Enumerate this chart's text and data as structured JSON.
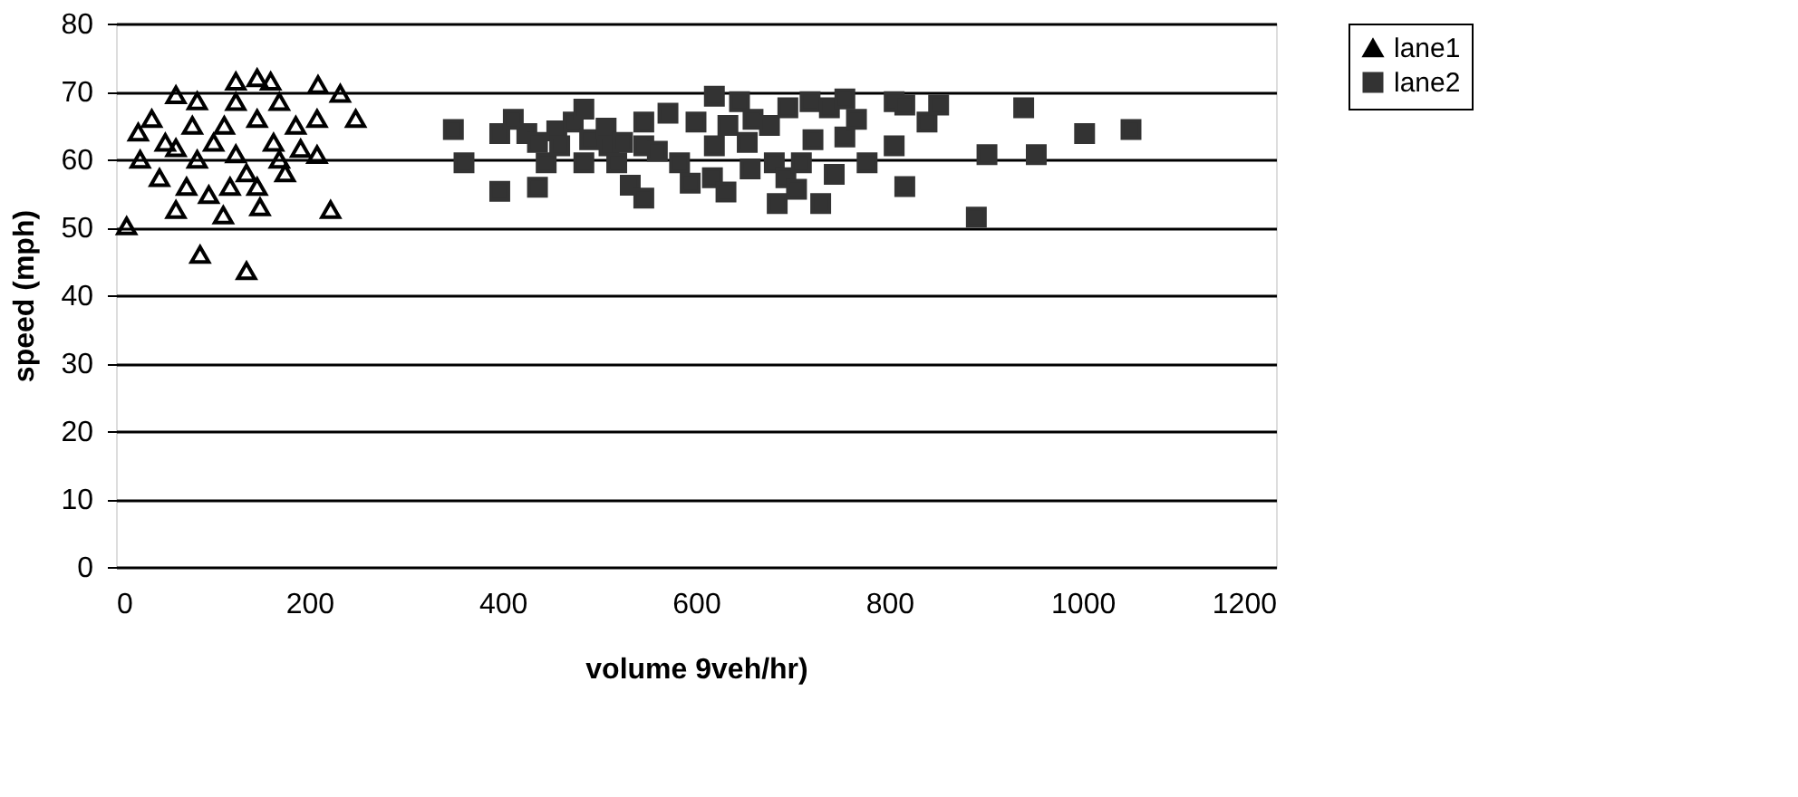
{
  "chart_data": {
    "type": "scatter",
    "xlabel": "volume 9veh/hr)",
    "ylabel": "speed (mph)",
    "xlim": [
      0,
      1200
    ],
    "xticks": [
      0,
      200,
      400,
      600,
      800,
      1000,
      1200
    ],
    "ylim": [
      0,
      80
    ],
    "yticks": [
      0,
      10,
      20,
      30,
      40,
      50,
      60,
      70,
      80
    ],
    "grid": "y",
    "legend": "right",
    "series": [
      {
        "name": "lane1",
        "color": "#000000",
        "marker": "triangle",
        "x": [
          11,
          87,
          135,
          222,
          149,
          111,
          62,
          25,
          23,
          37,
          62,
          84,
          124,
          146,
          160,
          209,
          232,
          248,
          208,
          208,
          186,
          175,
          73,
          84,
          101,
          124,
          135,
          96,
          112,
          124,
          146,
          163,
          51,
          45,
          79,
          169,
          146,
          169,
          118,
          62,
          191
        ],
        "values": [
          50.2,
          46,
          43.6,
          52.6,
          53,
          51.8,
          52.6,
          60,
          64,
          66,
          69.5,
          68.6,
          71.5,
          72,
          71.5,
          71,
          69.7,
          66,
          60.7,
          66,
          65,
          58,
          56,
          60,
          62.5,
          60.8,
          58,
          54.8,
          65,
          68.5,
          66,
          62.5,
          62.5,
          57.3,
          65,
          68.5,
          56,
          60,
          56,
          61.7,
          61.6
        ]
      },
      {
        "name": "lane2",
        "color": "#333333",
        "marker": "square",
        "x": [
          349,
          360,
          397,
          397,
          411,
          425,
          436,
          436,
          445,
          456,
          459,
          473,
          484,
          484,
          490,
          507,
          510,
          518,
          524,
          532,
          546,
          546,
          546,
          560,
          571,
          583,
          594,
          600,
          617,
          619,
          619,
          631,
          633,
          645,
          653,
          656,
          659,
          676,
          681,
          684,
          693,
          695,
          704,
          709,
          718,
          721,
          729,
          738,
          743,
          754,
          754,
          766,
          777,
          805,
          805,
          816,
          816,
          839,
          851,
          901,
          939,
          952,
          890,
          1002,
          1050
        ],
        "values": [
          64.4,
          59.5,
          55.3,
          63.8,
          65.9,
          63.8,
          62.5,
          55.9,
          59.5,
          64.2,
          62,
          65.5,
          67.4,
          59.5,
          62.9,
          64.6,
          62,
          59.5,
          62.5,
          56.2,
          65.5,
          62,
          54.3,
          61.2,
          66.8,
          59.5,
          56.5,
          65.5,
          57.3,
          69.3,
          62,
          55.2,
          65,
          68.5,
          62.5,
          58.6,
          65.9,
          65,
          59.5,
          53.5,
          57.3,
          67.6,
          55.6,
          59.5,
          68.5,
          62.9,
          53.5,
          67.6,
          57.8,
          63.3,
          68.9,
          65.9,
          59.5,
          68.5,
          62,
          68,
          56,
          65.5,
          68,
          60.7,
          67.6,
          60.7,
          51.5,
          63.8,
          64.4
        ]
      }
    ]
  }
}
